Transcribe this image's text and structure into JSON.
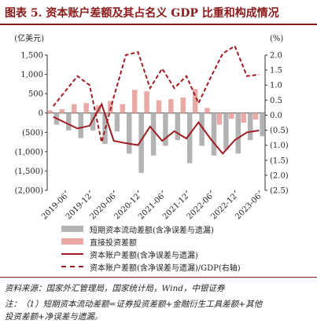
{
  "title": "图表 5. 资本账户差额及其占名义 GDP 比重和构成情况",
  "chart_data": {
    "type": "bar",
    "left_axis_unit": "(亿美元)",
    "right_axis_unit": "(%)",
    "left_ylim": [
      -2000,
      1500
    ],
    "left_ticks": [
      "1,500",
      "1,000",
      "500",
      "0",
      "(500)",
      "(1,000)",
      "(1,500)",
      "(2,000)"
    ],
    "right_ylim": [
      2.5,
      -2.0
    ],
    "right_ticks": [
      "2.0",
      "1.5",
      "1.0",
      "0.5",
      "0.0",
      "(0.5)",
      "(1.0)",
      "(1.5)",
      "(2.0)",
      "(2.5)"
    ],
    "x_tick_labels": [
      "2019-06",
      "2019-12",
      "2020-06",
      "2020-12",
      "2021-06",
      "2021-12",
      "2022-06",
      "2022-12",
      "2023-06"
    ],
    "categories": [
      "2019-03",
      "2019-06",
      "2019-09",
      "2019-12",
      "2020-03",
      "2020-06",
      "2020-09",
      "2020-12",
      "2021-03",
      "2021-06",
      "2021-09",
      "2021-12",
      "2022-03",
      "2022-06",
      "2022-09",
      "2022-12",
      "2023-03",
      "2023-06"
    ],
    "series": [
      {
        "name": "短期资本流动差额(含净误差与遗漏)",
        "type": "bar",
        "color": "#b3b3b3",
        "values": [
          -300,
          -450,
          -650,
          -450,
          -800,
          -480,
          -1050,
          -1550,
          -1100,
          -850,
          -700,
          -1300,
          -850,
          -1100,
          -950,
          -1050,
          -700,
          -600
        ]
      },
      {
        "name": "直接投资差额",
        "type": "bar",
        "color": "#eba9a5",
        "values": [
          70,
          100,
          230,
          260,
          200,
          310,
          230,
          600,
          560,
          330,
          360,
          400,
          620,
          130,
          -300,
          -150,
          -250,
          -170
        ]
      },
      {
        "name": "资本账户差额(含净误差与遗漏)",
        "type": "line",
        "color": "#a01c22",
        "axis": "left",
        "values": [
          -100,
          -250,
          -400,
          -330,
          230,
          -720,
          -780,
          -830,
          -350,
          -720,
          -470,
          -660,
          -240,
          -670,
          -1050,
          -700,
          -500,
          -450
        ]
      },
      {
        "name": "资本账户差额(含净误差与遗漏)/GDP(右轴)",
        "type": "line",
        "color": "#a01c22",
        "dash": true,
        "axis": "right",
        "values": [
          -0.3,
          -0.8,
          -1.3,
          -1.0,
          0.9,
          -0.6,
          -2.0,
          -2.1,
          -0.9,
          -1.55,
          -0.9,
          -1.3,
          -0.4,
          -1.25,
          -2.05,
          -2.3,
          -1.3,
          -1.35
        ]
      }
    ],
    "grid": false,
    "legend_position": "bottom"
  },
  "footer": {
    "source": "资料来源：国家外汇管理局，国家统计局，Wind，中银证券",
    "note_line1": "注：（1）短期资本流动差额=证券投资差额+金融衍生工具差额+其他",
    "note_line2": "投资差额+净误差与遗漏。"
  }
}
